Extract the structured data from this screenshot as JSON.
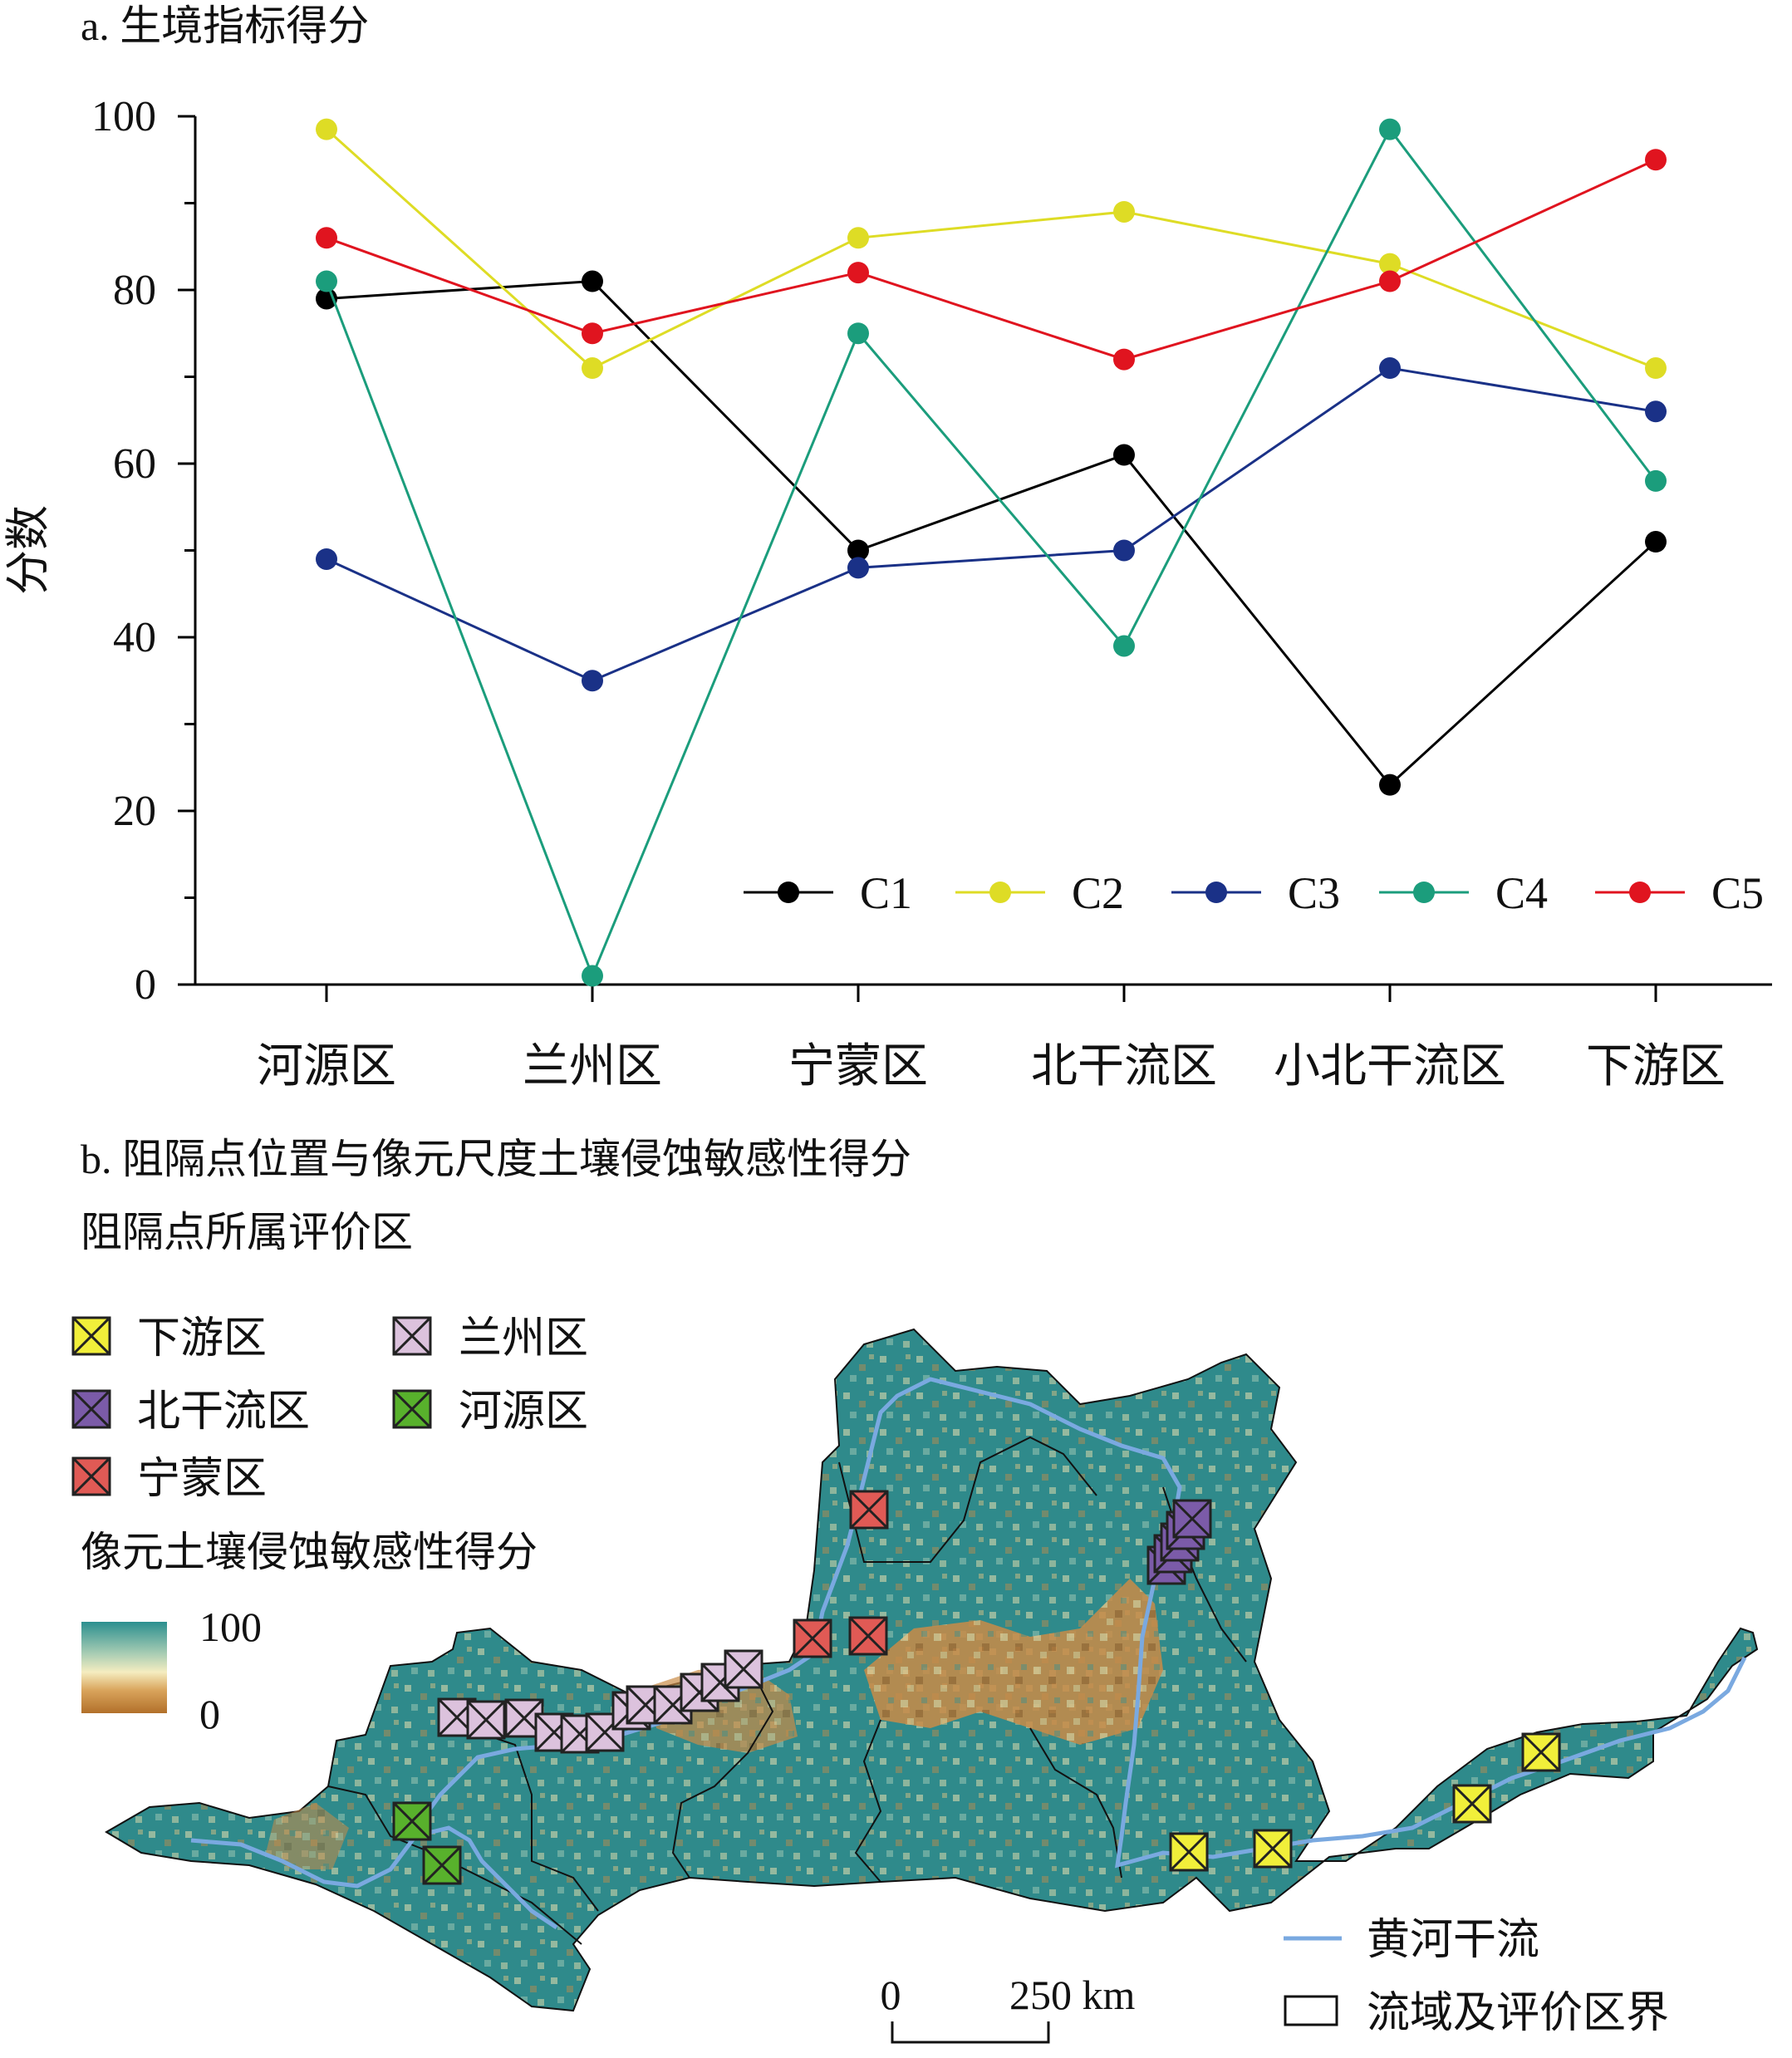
{
  "panel_a": {
    "title": "a. 生境指标得分"
  },
  "chart_data": {
    "type": "line",
    "title": "a. 生境指标得分",
    "xlabel": "",
    "ylabel": "分数",
    "ylim": [
      0,
      100
    ],
    "yticks": [
      0,
      20,
      40,
      60,
      80,
      100
    ],
    "categories": [
      "河源区",
      "兰州区",
      "宁蒙区",
      "北干流区",
      "小北干流区",
      "下游区"
    ],
    "legend_position": "bottom-right",
    "series": [
      {
        "name": "C1",
        "color": "#000000",
        "values": [
          79,
          81,
          50,
          61,
          23,
          51
        ]
      },
      {
        "name": "C2",
        "color": "#dedc25",
        "values": [
          98.5,
          71,
          86,
          89,
          83,
          71
        ]
      },
      {
        "name": "C3",
        "color": "#1a3187",
        "values": [
          49,
          35,
          48,
          50,
          71,
          66
        ]
      },
      {
        "name": "C4",
        "color": "#1b9d7c",
        "values": [
          81,
          1,
          75,
          39,
          98.5,
          58
        ]
      },
      {
        "name": "C5",
        "color": "#e0141f",
        "values": [
          86,
          75,
          82,
          72,
          81,
          95
        ]
      }
    ]
  },
  "panel_b": {
    "title": "b. 阻隔点位置与像元尺度土壤侵蚀敏感性得分",
    "legend_title": "阻隔点所属评价区",
    "legend_items": [
      {
        "label": "下游区",
        "color": "#f1ef3a"
      },
      {
        "label": "兰州区",
        "color": "#dcc2dd"
      },
      {
        "label": "北干流区",
        "color": "#7b5ba8"
      },
      {
        "label": "河源区",
        "color": "#58b12c"
      },
      {
        "label": "宁蒙区",
        "color": "#e05a55"
      }
    ],
    "colorbar_title": "像元土壤侵蚀敏感性得分",
    "colorbar_max": "100",
    "colorbar_min": "0",
    "colorbar_colors": [
      "#2b8f8f",
      "#f5edc0",
      "#b2702a"
    ],
    "river_label": "黄河干流",
    "river_color": "#7aa9e0",
    "boundary_label": "流域及评价区界",
    "scale_zero": "0",
    "scale_label": "250 km"
  }
}
